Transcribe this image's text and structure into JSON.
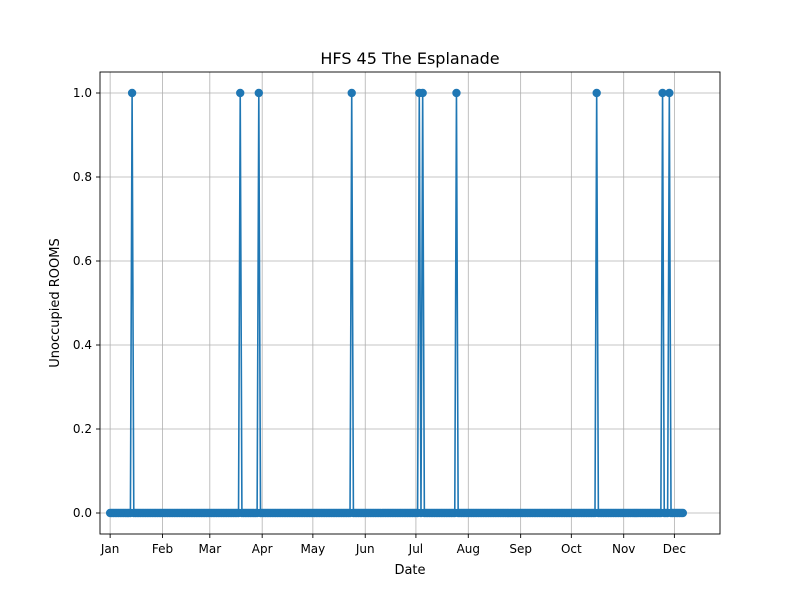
{
  "chart_data": {
    "type": "line",
    "title": "HFS 45 The Esplanade",
    "xlabel": "Date",
    "ylabel": "Unoccupied ROOMS",
    "x_range": [
      "2022-12-26",
      "2023-12-28"
    ],
    "ylim": [
      -0.05,
      1.05
    ],
    "grid": true,
    "marker": "circle",
    "color": "#1f77b4",
    "x_ticks": [
      {
        "date": "2023-01-01",
        "label": "Jan"
      },
      {
        "date": "2023-02-01",
        "label": "Feb"
      },
      {
        "date": "2023-03-01",
        "label": "Mar"
      },
      {
        "date": "2023-04-01",
        "label": "Apr"
      },
      {
        "date": "2023-05-01",
        "label": "May"
      },
      {
        "date": "2023-06-01",
        "label": "Jun"
      },
      {
        "date": "2023-07-01",
        "label": "Jul"
      },
      {
        "date": "2023-08-01",
        "label": "Aug"
      },
      {
        "date": "2023-09-01",
        "label": "Sep"
      },
      {
        "date": "2023-10-01",
        "label": "Oct"
      },
      {
        "date": "2023-11-01",
        "label": "Nov"
      },
      {
        "date": "2023-12-01",
        "label": "Dec"
      }
    ],
    "y_ticks": [
      {
        "value": 0.0,
        "label": "0.0"
      },
      {
        "value": 0.2,
        "label": "0.2"
      },
      {
        "value": 0.4,
        "label": "0.4"
      },
      {
        "value": 0.6,
        "label": "0.6"
      },
      {
        "value": 0.8,
        "label": "0.8"
      },
      {
        "value": 1.0,
        "label": "1.0"
      }
    ],
    "date_start": "2023-01-01",
    "date_end": "2023-12-06",
    "baseline_value": 0,
    "peaks": [
      {
        "date": "2023-01-14",
        "value": 1
      },
      {
        "date": "2023-03-19",
        "value": 1
      },
      {
        "date": "2023-03-30",
        "value": 1
      },
      {
        "date": "2023-05-24",
        "value": 1
      },
      {
        "date": "2023-07-03",
        "value": 1
      },
      {
        "date": "2023-07-05",
        "value": 1
      },
      {
        "date": "2023-07-25",
        "value": 1
      },
      {
        "date": "2023-10-16",
        "value": 1
      },
      {
        "date": "2023-11-24",
        "value": 1
      },
      {
        "date": "2023-11-28",
        "value": 1
      }
    ]
  }
}
